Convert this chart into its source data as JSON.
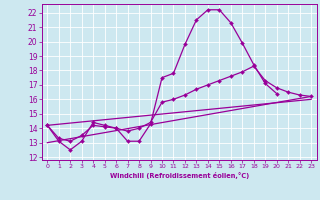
{
  "xlabel": "Windchill (Refroidissement éolien,°C)",
  "bg_color": "#cde8f0",
  "line_color": "#990099",
  "xlim": [
    -0.5,
    23.5
  ],
  "ylim": [
    11.8,
    22.6
  ],
  "yticks": [
    12,
    13,
    14,
    15,
    16,
    17,
    18,
    19,
    20,
    21,
    22
  ],
  "xticks": [
    0,
    1,
    2,
    3,
    4,
    5,
    6,
    7,
    8,
    9,
    10,
    11,
    12,
    13,
    14,
    15,
    16,
    17,
    18,
    19,
    20,
    21,
    22,
    23
  ],
  "series": [
    {
      "x": [
        0,
        1,
        2,
        3,
        4,
        5,
        6,
        7,
        8,
        9,
        10,
        11,
        12,
        13,
        14,
        15,
        16,
        17,
        18,
        19,
        20
      ],
      "y": [
        14.2,
        13.1,
        12.5,
        13.1,
        14.4,
        14.2,
        14.0,
        13.1,
        13.1,
        14.3,
        17.5,
        17.8,
        19.8,
        21.5,
        22.2,
        22.2,
        21.3,
        19.9,
        18.4,
        17.1,
        16.4
      ]
    },
    {
      "x": [
        0,
        1,
        2,
        3,
        4,
        5,
        6,
        7,
        8,
        9,
        10,
        11,
        12,
        13,
        14,
        15,
        16,
        17,
        18,
        19,
        20,
        21,
        22,
        23
      ],
      "y": [
        14.2,
        13.3,
        13.1,
        13.5,
        14.2,
        14.1,
        14.0,
        13.8,
        14.0,
        14.4,
        15.8,
        16.0,
        16.3,
        16.7,
        17.0,
        17.3,
        17.6,
        17.9,
        18.3,
        17.3,
        16.8,
        16.5,
        16.3,
        16.2
      ]
    },
    {
      "x": [
        0,
        23
      ],
      "y": [
        13.0,
        16.2
      ]
    },
    {
      "x": [
        0,
        23
      ],
      "y": [
        14.2,
        16.0
      ]
    }
  ]
}
